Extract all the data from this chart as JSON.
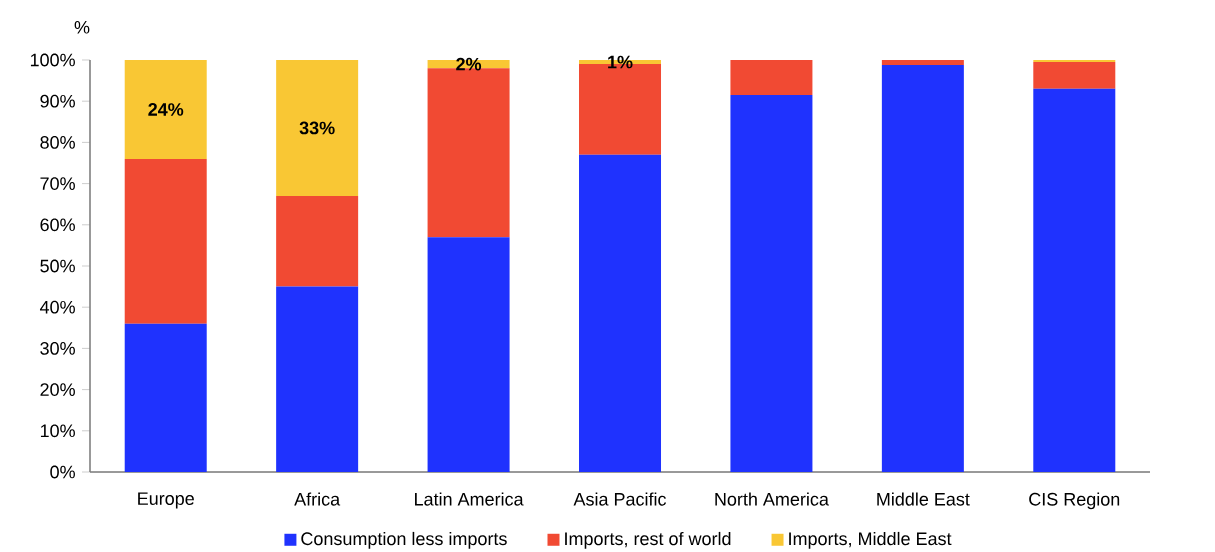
{
  "chart_data": {
    "type": "bar",
    "stacked": true,
    "ylabel": "%",
    "categories": [
      "Europe",
      "Africa",
      "Latin America",
      "Asia Pacific",
      "North America",
      "Middle East",
      "CIS Region"
    ],
    "series": [
      {
        "name": "Consumption less imports",
        "color": "#1f32fe",
        "values": [
          36,
          45,
          57,
          77,
          91.5,
          98.8,
          93
        ]
      },
      {
        "name": "Imports, rest of world",
        "color": "#f14a33",
        "values": [
          40,
          22,
          41,
          22,
          8.5,
          1.2,
          6.5
        ]
      },
      {
        "name": "Imports, Middle East",
        "color": "#f9c734",
        "values": [
          24,
          33,
          2,
          1,
          0,
          0,
          0.5
        ],
        "value_labels": [
          "24%",
          "33%",
          "2%",
          "1%",
          null,
          null,
          null
        ]
      }
    ],
    "ylim": [
      0,
      100
    ],
    "yticks": [
      {
        "value": 0,
        "label": "0%"
      },
      {
        "value": 10,
        "label": "10%"
      },
      {
        "value": 20,
        "label": "20%"
      },
      {
        "value": 30,
        "label": "30%"
      },
      {
        "value": 40,
        "label": "40%"
      },
      {
        "value": 50,
        "label": "50%"
      },
      {
        "value": 60,
        "label": "60%"
      },
      {
        "value": 70,
        "label": "70%"
      },
      {
        "value": 80,
        "label": "80%"
      },
      {
        "value": 90,
        "label": "90%"
      },
      {
        "value": 100,
        "label": "100%"
      }
    ],
    "grid": false,
    "legend": "bottom"
  }
}
